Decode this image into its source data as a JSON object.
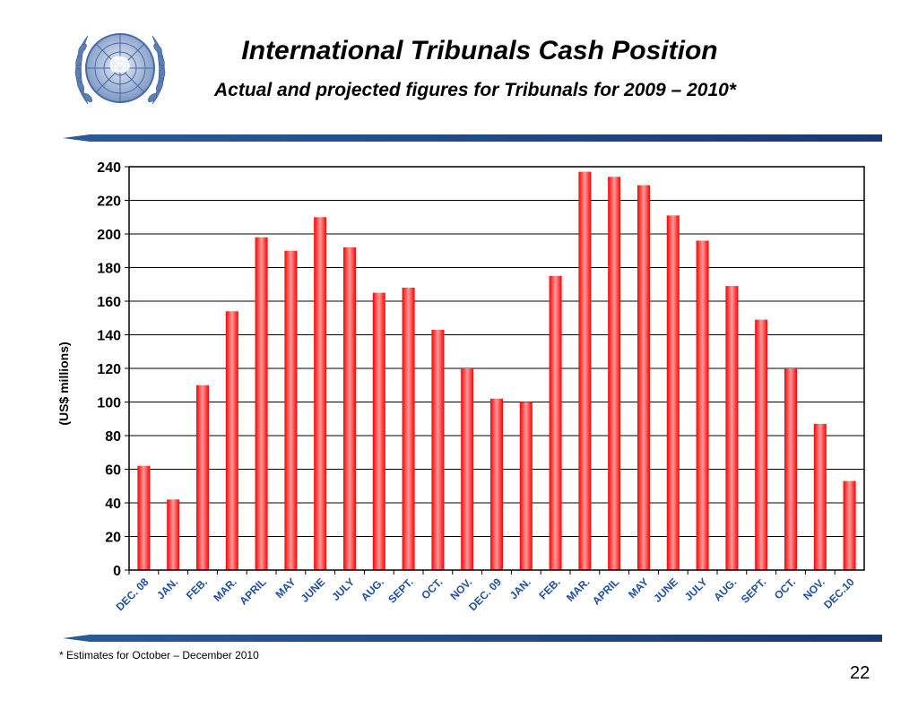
{
  "slide": {
    "title": "International Tribunals Cash Position",
    "subtitle": "Actual and projected figures for Tribunals for 2009 – 2010*",
    "footnote": "* Estimates for October – December 2010",
    "page_number": "22",
    "logo_icon": "un-emblem-icon",
    "accent_color": "#1f4e8c"
  },
  "chart_data": {
    "type": "bar",
    "title": "",
    "xlabel": "",
    "ylabel": "(US$  millions)",
    "ylim": [
      0,
      240
    ],
    "y_ticks": [
      0,
      20,
      40,
      60,
      80,
      100,
      120,
      140,
      160,
      180,
      200,
      220,
      240
    ],
    "grid": true,
    "bar_color": "#ff0000",
    "categories": [
      "DEC. 08",
      "JAN.",
      "FEB.",
      "MAR.",
      "APRIL",
      "MAY",
      "JUNE",
      "JULY",
      "AUG.",
      "SEPT.",
      "OCT.",
      "NOV.",
      "DEC. 09",
      "JAN.",
      "FEB.",
      "MAR.",
      "APRIL",
      "MAY",
      "JUNE",
      "JULY",
      "AUG.",
      "SEPT.",
      "OCT.",
      "NOV.",
      "DEC.10"
    ],
    "values": [
      62,
      42,
      110,
      154,
      198,
      190,
      210,
      192,
      165,
      168,
      143,
      120,
      102,
      100,
      175,
      237,
      234,
      229,
      211,
      196,
      169,
      149,
      120,
      87,
      53
    ]
  }
}
